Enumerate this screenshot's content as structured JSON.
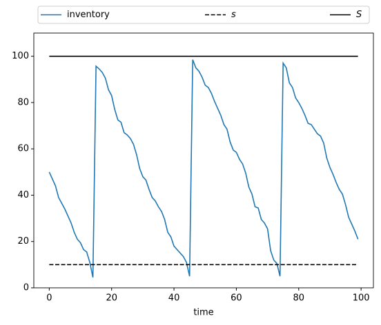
{
  "chart_data": {
    "type": "line",
    "xlabel": "time",
    "x": [
      0,
      1,
      2,
      3,
      4,
      5,
      6,
      7,
      8,
      9,
      10,
      11,
      12,
      13,
      14,
      15,
      16,
      17,
      18,
      19,
      20,
      21,
      22,
      23,
      24,
      25,
      26,
      27,
      28,
      29,
      30,
      31,
      32,
      33,
      34,
      35,
      36,
      37,
      38,
      39,
      40,
      41,
      42,
      43,
      44,
      45,
      46,
      47,
      48,
      49,
      50,
      51,
      52,
      53,
      54,
      55,
      56,
      57,
      58,
      59,
      60,
      61,
      62,
      63,
      64,
      65,
      66,
      67,
      68,
      69,
      70,
      71,
      72,
      73,
      74,
      75,
      76,
      77,
      78,
      79,
      80,
      81,
      82,
      83,
      84,
      85,
      86,
      87,
      88,
      89,
      90,
      91,
      92,
      93,
      94,
      95,
      96,
      97,
      98,
      99
    ],
    "series": [
      {
        "name": "inventory",
        "color": "#1f77b4",
        "dash": "solid",
        "values": [
          50,
          47,
          44,
          39,
          36.5,
          34,
          31,
          28,
          24,
          21,
          19.5,
          16.5,
          15.5,
          11,
          4.5,
          95.7,
          94.5,
          93,
          90.5,
          85.5,
          83,
          77,
          72.5,
          71.5,
          67,
          66,
          64.5,
          62,
          57.5,
          51.5,
          48,
          46.5,
          42.5,
          39,
          37.5,
          35,
          33,
          29.5,
          24,
          22,
          18,
          16.5,
          15,
          13.5,
          11,
          5,
          98.5,
          95,
          93.5,
          91,
          87.5,
          86.5,
          84,
          80.5,
          77.5,
          74.5,
          70.5,
          68.5,
          63,
          59.5,
          58.5,
          55.5,
          53.5,
          49.5,
          43.5,
          40.5,
          35,
          34.5,
          29.5,
          28,
          25.5,
          16,
          12,
          10.5,
          5,
          97,
          95,
          88.5,
          86.5,
          82,
          80,
          77.5,
          74.5,
          71,
          70.5,
          68.5,
          66.5,
          65.5,
          62.5,
          56,
          52,
          49,
          45.5,
          42.5,
          40.5,
          36,
          30.5,
          27.5,
          24.5,
          21
        ]
      },
      {
        "name": "s",
        "color": "#000000",
        "dash": "dashed",
        "x": [
          0,
          99
        ],
        "values": [
          10,
          10
        ]
      },
      {
        "name": "S",
        "color": "#000000",
        "dash": "solid",
        "x": [
          0,
          99
        ],
        "values": [
          100,
          100
        ]
      }
    ],
    "xlim": [
      -4.95,
      103.95
    ],
    "ylim": [
      0,
      110
    ],
    "xticks": [
      0,
      20,
      40,
      60,
      80,
      100
    ],
    "yticks": [
      0,
      20,
      40,
      60,
      80,
      100
    ],
    "grid": false,
    "legend": "upper center"
  }
}
